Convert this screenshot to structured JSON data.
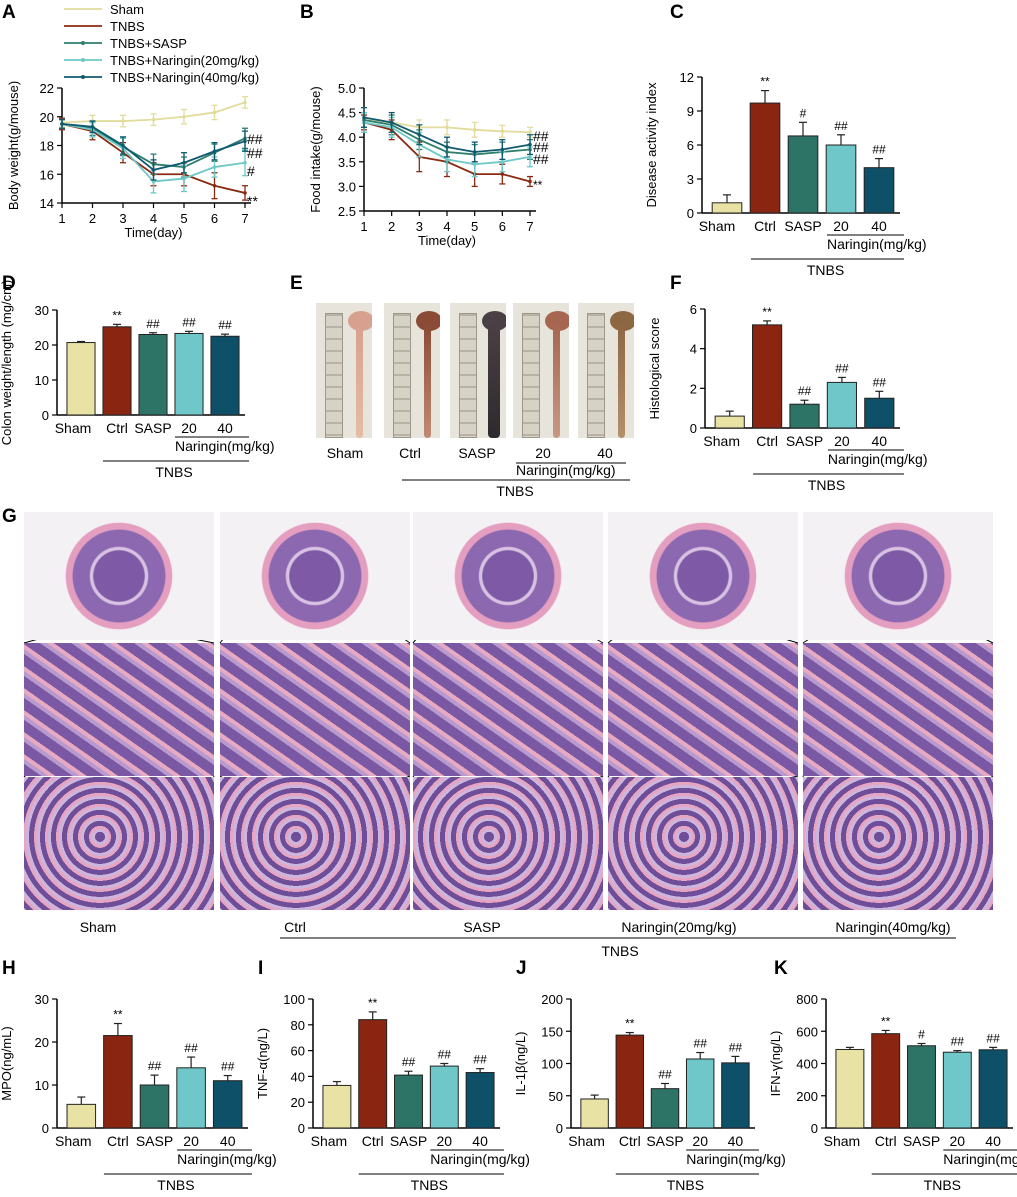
{
  "panel_letters": [
    "A",
    "B",
    "C",
    "D",
    "E",
    "F",
    "G",
    "H",
    "I",
    "J",
    "K"
  ],
  "colors": {
    "sham": "#e2dc9c",
    "tnbs": "#8b2a12",
    "sasp": "#2e7e6e",
    "nar20": "#6cc9c7",
    "nar40": "#0f5a6e",
    "bar_sham": "#e8e2a4",
    "bar_ctrl": "#8a2511",
    "bar_sasp": "#2e7466",
    "bar_nar20": "#6fc7c9",
    "bar_nar40": "#0d5068",
    "he_pink": "#e7a8c4",
    "he_purple": "#7e5aa6",
    "roi_green": "#3ac44a"
  },
  "group_labels": {
    "sham": "Sham",
    "ctrl": "Ctrl",
    "sasp": "SASP",
    "d20": "20",
    "d40": "40",
    "naringin": "Naringin(mg/kg)",
    "tnbs": "TNBS"
  },
  "panel_e_labels": [
    "Sham",
    "Ctrl",
    "SASP",
    "20",
    "40"
  ],
  "panel_g_labels": [
    "Sham",
    "Ctrl",
    "SASP",
    "Naringin(20mg/kg)",
    "Naringin(40mg/kg)"
  ],
  "chart_data": [
    {
      "panel": "A",
      "type": "line",
      "xlabel": "Time(day)",
      "ylabel": "Body weight(g/mouse)",
      "xlim": [
        1,
        7
      ],
      "ylim": [
        14,
        22
      ],
      "yticks": [
        14,
        16,
        18,
        20,
        22
      ],
      "x": [
        1,
        2,
        3,
        4,
        5,
        6,
        7
      ],
      "series": [
        {
          "name": "Sham",
          "values": [
            19.6,
            19.7,
            19.7,
            19.8,
            20.0,
            20.3,
            21.0
          ],
          "err": [
            0.3,
            0.4,
            0.4,
            0.4,
            0.5,
            0.5,
            0.4
          ]
        },
        {
          "name": "TNBS",
          "values": [
            19.5,
            19.0,
            17.5,
            16.0,
            16.0,
            15.2,
            14.7
          ],
          "err": [
            0.4,
            0.6,
            0.7,
            0.8,
            0.8,
            0.9,
            0.5
          ]
        },
        {
          "name": "TNBS+SASP",
          "values": [
            19.5,
            19.2,
            17.9,
            16.7,
            16.5,
            17.5,
            18.5
          ],
          "err": [
            0.3,
            0.5,
            0.6,
            0.7,
            0.7,
            0.6,
            0.7
          ]
        },
        {
          "name": "TNBS+Naringin(20mg/kg)",
          "values": [
            19.5,
            19.1,
            17.8,
            15.5,
            15.7,
            16.5,
            16.8
          ],
          "err": [
            0.3,
            0.5,
            0.7,
            0.8,
            0.9,
            0.7,
            0.9
          ]
        },
        {
          "name": "TNBS+Naringin(40mg/kg)",
          "values": [
            19.5,
            19.3,
            18.0,
            16.3,
            16.8,
            17.6,
            18.3
          ],
          "err": [
            0.3,
            0.4,
            0.6,
            0.7,
            0.7,
            0.6,
            0.7
          ]
        }
      ],
      "significance": [
        "##",
        "##",
        "#",
        "**"
      ]
    },
    {
      "panel": "B",
      "type": "line",
      "xlabel": "Time(day)",
      "ylabel": "Food intake(g/mouse)",
      "xlim": [
        1,
        7
      ],
      "ylim": [
        2.5,
        5.0
      ],
      "yticks": [
        2.5,
        3.0,
        3.5,
        4.0,
        4.5,
        5.0
      ],
      "x": [
        1,
        2,
        3,
        4,
        5,
        6,
        7
      ],
      "series": [
        {
          "name": "Sham",
          "values": [
            4.35,
            4.3,
            4.2,
            4.2,
            4.15,
            4.12,
            4.1
          ],
          "err": [
            0.15,
            0.15,
            0.15,
            0.15,
            0.15,
            0.12,
            0.1
          ]
        },
        {
          "name": "TNBS",
          "values": [
            4.3,
            4.15,
            3.6,
            3.5,
            3.25,
            3.25,
            3.1
          ],
          "err": [
            0.15,
            0.2,
            0.3,
            0.3,
            0.25,
            0.2,
            0.1
          ]
        },
        {
          "name": "TNBS+SASP",
          "values": [
            4.35,
            4.25,
            3.95,
            3.7,
            3.65,
            3.7,
            3.75
          ],
          "err": [
            0.15,
            0.2,
            0.2,
            0.2,
            0.2,
            0.2,
            0.2
          ]
        },
        {
          "name": "TNBS+Naringin(20mg/kg)",
          "values": [
            4.3,
            4.2,
            3.85,
            3.55,
            3.45,
            3.5,
            3.6
          ],
          "err": [
            0.2,
            0.2,
            0.25,
            0.25,
            0.25,
            0.2,
            0.2
          ]
        },
        {
          "name": "TNBS+Naringin(40mg/kg)",
          "values": [
            4.4,
            4.3,
            4.05,
            3.8,
            3.7,
            3.75,
            3.85
          ],
          "err": [
            0.2,
            0.2,
            0.2,
            0.2,
            0.2,
            0.2,
            0.2
          ]
        }
      ],
      "significance": [
        "##",
        "##",
        "##",
        "**"
      ]
    },
    {
      "panel": "C",
      "type": "bar",
      "ylabel": "Disease activity index",
      "ylim": [
        0,
        12
      ],
      "yticks": [
        0,
        3,
        6,
        9,
        12
      ],
      "categories": [
        "Sham",
        "Ctrl",
        "SASP",
        "20",
        "40"
      ],
      "values": [
        0.9,
        9.7,
        6.8,
        6.0,
        4.0
      ],
      "err": [
        0.7,
        1.1,
        1.2,
        0.9,
        0.8
      ],
      "labels": [
        "",
        "**",
        "#",
        "##",
        "##"
      ]
    },
    {
      "panel": "D",
      "type": "bar",
      "ylabel": "Colon weight/length (mg/cm)",
      "ylim": [
        0,
        30
      ],
      "yticks": [
        0,
        10,
        20,
        30
      ],
      "categories": [
        "Sham",
        "Ctrl",
        "SASP",
        "20",
        "40"
      ],
      "values": [
        20.7,
        25.2,
        23.0,
        23.3,
        22.5
      ],
      "err": [
        0.3,
        0.7,
        0.5,
        0.6,
        0.6
      ],
      "labels": [
        "",
        "**",
        "##",
        "##",
        "##"
      ]
    },
    {
      "panel": "F",
      "type": "bar",
      "ylabel": "Histological score",
      "ylim": [
        0,
        6
      ],
      "yticks": [
        0,
        2,
        4,
        6
      ],
      "categories": [
        "Sham",
        "Ctrl",
        "SASP",
        "20",
        "40"
      ],
      "values": [
        0.6,
        5.2,
        1.2,
        2.3,
        1.5
      ],
      "err": [
        0.25,
        0.2,
        0.2,
        0.25,
        0.35
      ],
      "labels": [
        "",
        "**",
        "##",
        "##",
        "##"
      ]
    },
    {
      "panel": "H",
      "type": "bar",
      "ylabel": "MPO(ng/mL)",
      "ylim": [
        0,
        30
      ],
      "yticks": [
        0,
        10,
        20,
        30
      ],
      "categories": [
        "Sham",
        "Ctrl",
        "SASP",
        "20",
        "40"
      ],
      "values": [
        5.5,
        21.5,
        10.0,
        14.0,
        11.0
      ],
      "err": [
        1.7,
        2.8,
        2.3,
        2.5,
        1.2
      ],
      "labels": [
        "",
        "**",
        "##",
        "##",
        "##"
      ]
    },
    {
      "panel": "I",
      "type": "bar",
      "ylabel": "TNF-α(ng/L)",
      "ylim": [
        0,
        100
      ],
      "yticks": [
        0,
        20,
        40,
        60,
        80,
        100
      ],
      "categories": [
        "Sham",
        "Ctrl",
        "SASP",
        "20",
        "40"
      ],
      "values": [
        33,
        84,
        41,
        48,
        43
      ],
      "err": [
        3,
        6,
        3,
        2,
        3
      ],
      "labels": [
        "",
        "**",
        "##",
        "##",
        "##"
      ]
    },
    {
      "panel": "J",
      "type": "bar",
      "ylabel": "IL-1β(ng/L)",
      "ylim": [
        0,
        200
      ],
      "yticks": [
        0,
        50,
        100,
        150,
        200
      ],
      "categories": [
        "Sham",
        "Ctrl",
        "SASP",
        "20",
        "40"
      ],
      "values": [
        45,
        144,
        61,
        107,
        101
      ],
      "err": [
        6,
        4,
        8,
        10,
        10
      ],
      "labels": [
        "",
        "**",
        "##",
        "##",
        "##"
      ]
    },
    {
      "panel": "K",
      "type": "bar",
      "ylabel": "IFN-γ(ng/L)",
      "ylim": [
        0,
        800
      ],
      "yticks": [
        0,
        200,
        400,
        600,
        800
      ],
      "categories": [
        "Sham",
        "Ctrl",
        "SASP",
        "20",
        "40"
      ],
      "values": [
        487,
        585,
        510,
        470,
        485
      ],
      "err": [
        13,
        20,
        14,
        10,
        15
      ],
      "labels": [
        "",
        "**",
        "#",
        "##",
        "##"
      ]
    }
  ]
}
